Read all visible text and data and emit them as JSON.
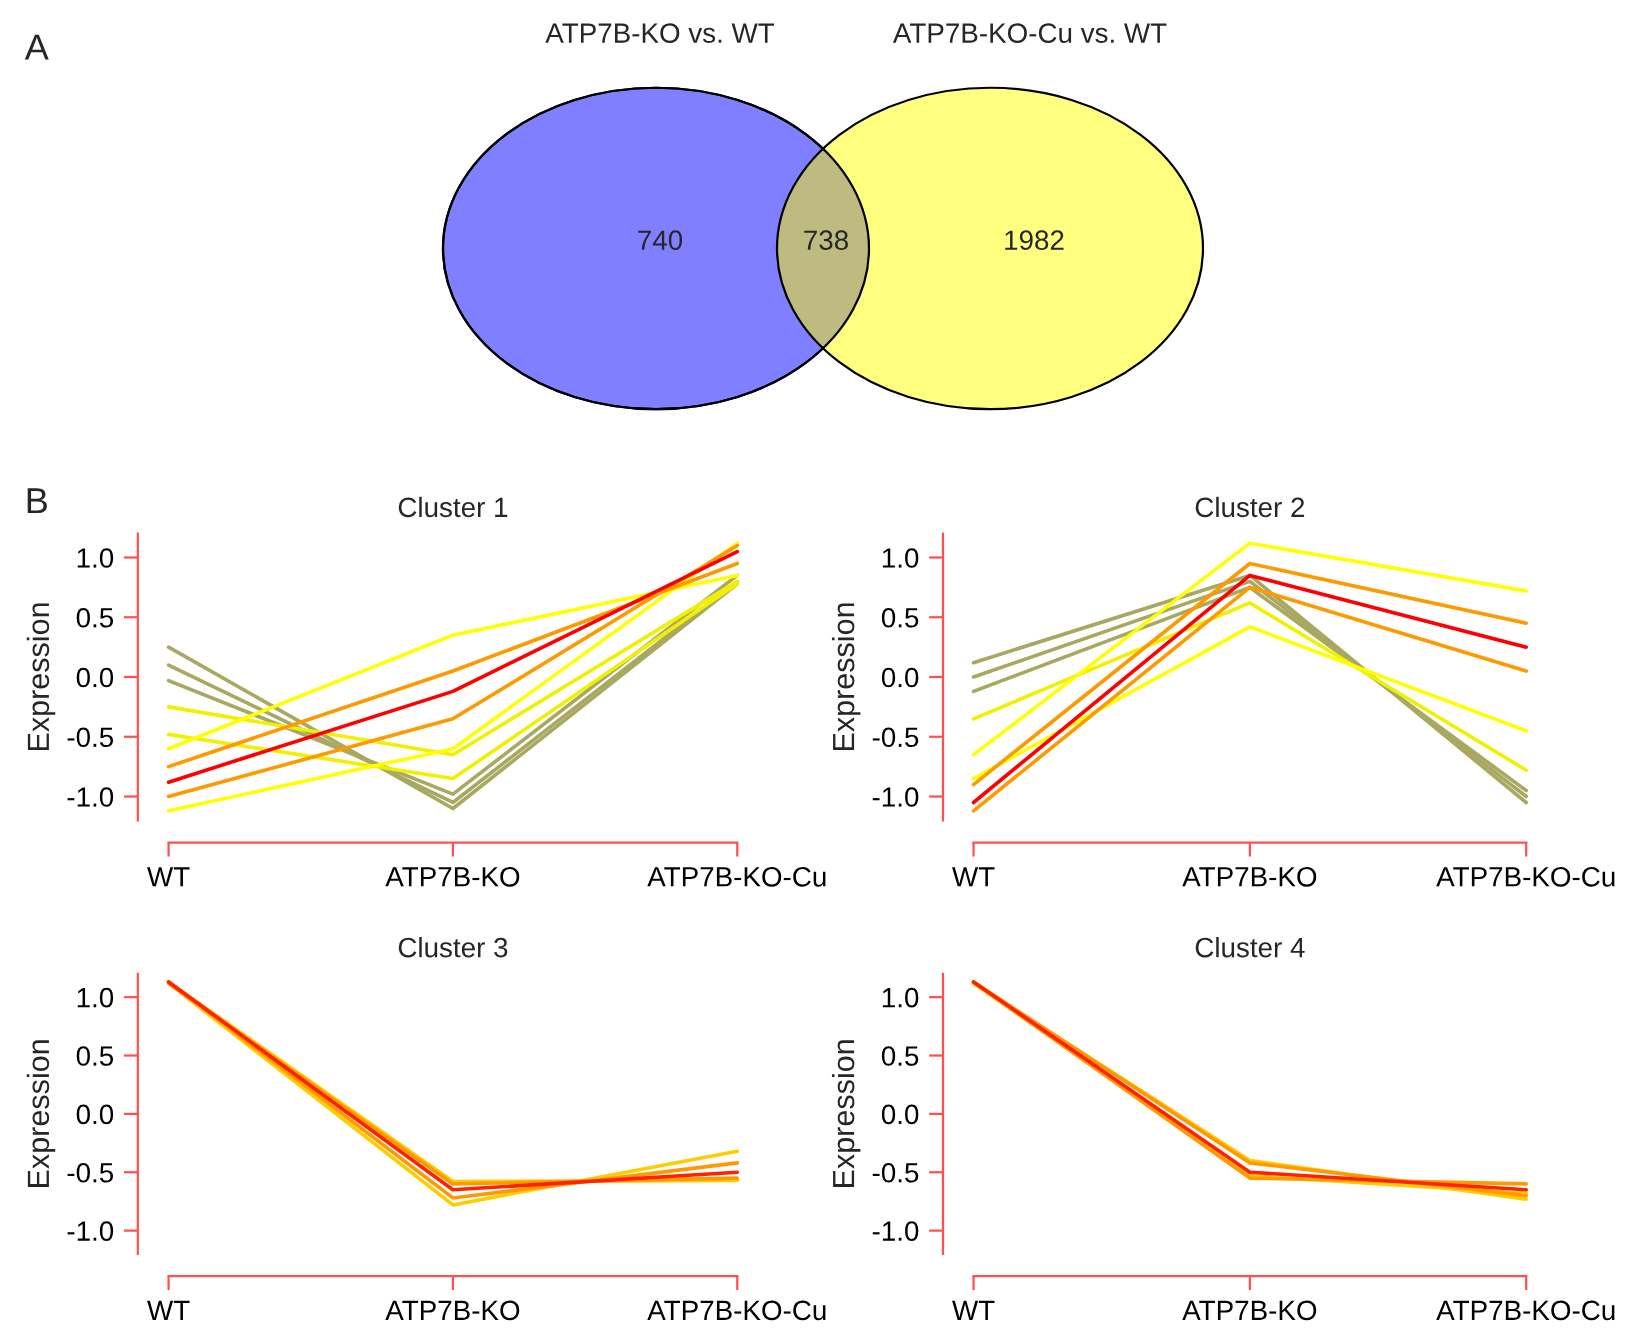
{
  "chart_data": [
    {
      "type": "other",
      "categories": [
        "ATP7B-KO vs. WT",
        null,
        "ATP7B-KO-Cu vs. WT"
      ],
      "values": [
        740,
        738,
        1982
      ],
      "colors": [
        "#7f7fff",
        "#bdbb80",
        "#ffff80"
      ],
      "data_labels": true,
      "annotations": [
        "A"
      ]
    },
    {
      "type": "line",
      "title": "Cluster 1",
      "ylabel": "Expression",
      "annotations": [
        "B"
      ],
      "categories": [
        "WT",
        "ATP7B-KO",
        "ATP7B-KO-Cu"
      ],
      "ylim": [
        -1.2,
        1.2
      ],
      "yticks": [
        {
          "value": -1.0,
          "label": "-1.0"
        },
        {
          "value": -0.5,
          "label": "-0.5"
        },
        {
          "value": 0.0,
          "label": "0.0"
        },
        {
          "value": 0.5,
          "label": "0.5"
        },
        {
          "value": 1.0,
          "label": "1.0"
        }
      ],
      "series": [
        {
          "color": "#a8a860",
          "values": [
            0.25,
            -1.1,
            0.78
          ]
        },
        {
          "color": "#a8a860",
          "values": [
            0.1,
            -1.05,
            0.8
          ]
        },
        {
          "color": "#a8a860",
          "values": [
            -0.03,
            -0.98,
            0.85
          ]
        },
        {
          "color": "#f0f000",
          "values": [
            -0.25,
            -0.65,
            0.8
          ]
        },
        {
          "color": "#f0f000",
          "values": [
            -0.48,
            -0.85,
            0.78
          ]
        },
        {
          "color": "#ffff00",
          "values": [
            -0.6,
            0.35,
            0.85
          ]
        },
        {
          "color": "#ffff00",
          "values": [
            -1.12,
            -0.6,
            1.12
          ]
        },
        {
          "color": "#ff9900",
          "values": [
            -0.75,
            0.05,
            0.95
          ]
        },
        {
          "color": "#ff9900",
          "values": [
            -1.0,
            -0.35,
            1.1
          ]
        },
        {
          "color": "#ff0000",
          "values": [
            -0.88,
            -0.12,
            1.05
          ]
        }
      ]
    },
    {
      "type": "line",
      "title": "Cluster 2",
      "ylabel": "Expression",
      "categories": [
        "WT",
        "ATP7B-KO",
        "ATP7B-KO-Cu"
      ],
      "ylim": [
        -1.2,
        1.2
      ],
      "yticks": [
        {
          "value": -1.0,
          "label": "-1.0"
        },
        {
          "value": -0.5,
          "label": "-0.5"
        },
        {
          "value": 0.0,
          "label": "0.0"
        },
        {
          "value": 0.5,
          "label": "0.5"
        },
        {
          "value": 1.0,
          "label": "1.0"
        }
      ],
      "series": [
        {
          "color": "#a8a860",
          "values": [
            0.12,
            0.85,
            -1.05
          ]
        },
        {
          "color": "#a8a860",
          "values": [
            0.0,
            0.8,
            -1.0
          ]
        },
        {
          "color": "#a8a860",
          "values": [
            -0.12,
            0.75,
            -0.95
          ]
        },
        {
          "color": "#f0f000",
          "values": [
            -0.35,
            0.62,
            -0.78
          ]
        },
        {
          "color": "#ffff00",
          "values": [
            -0.65,
            1.12,
            0.72
          ]
        },
        {
          "color": "#ffff00",
          "values": [
            -0.85,
            0.42,
            -0.45
          ]
        },
        {
          "color": "#ff9900",
          "values": [
            -0.9,
            0.95,
            0.45
          ]
        },
        {
          "color": "#ff9900",
          "values": [
            -1.12,
            0.75,
            0.05
          ]
        },
        {
          "color": "#ff0000",
          "values": [
            -1.05,
            0.85,
            0.25
          ]
        }
      ]
    },
    {
      "type": "line",
      "title": "Cluster 3",
      "ylabel": "Expression",
      "categories": [
        "WT",
        "ATP7B-KO",
        "ATP7B-KO-Cu"
      ],
      "ylim": [
        -1.2,
        1.2
      ],
      "yticks": [
        {
          "value": -1.0,
          "label": "-1.0"
        },
        {
          "value": -0.5,
          "label": "-0.5"
        },
        {
          "value": 0.0,
          "label": "0.0"
        },
        {
          "value": 0.5,
          "label": "0.5"
        },
        {
          "value": 1.0,
          "label": "1.0"
        }
      ],
      "series": [
        {
          "color": "#ffcc00",
          "values": [
            1.12,
            -0.78,
            -0.32
          ]
        },
        {
          "color": "#ffcc00",
          "values": [
            1.13,
            -0.58,
            -0.57
          ]
        },
        {
          "color": "#ff9900",
          "values": [
            1.13,
            -0.72,
            -0.42
          ]
        },
        {
          "color": "#ff9900",
          "values": [
            1.12,
            -0.6,
            -0.55
          ]
        },
        {
          "color": "#ff2200",
          "values": [
            1.13,
            -0.65,
            -0.5
          ]
        }
      ]
    },
    {
      "type": "line",
      "title": "Cluster 4",
      "ylabel": "Expression",
      "categories": [
        "WT",
        "ATP7B-KO",
        "ATP7B-KO-Cu"
      ],
      "ylim": [
        -1.2,
        1.2
      ],
      "yticks": [
        {
          "value": -1.0,
          "label": "-1.0"
        },
        {
          "value": -0.5,
          "label": "-0.5"
        },
        {
          "value": 0.0,
          "label": "0.0"
        },
        {
          "value": 0.5,
          "label": "0.5"
        },
        {
          "value": 1.0,
          "label": "1.0"
        }
      ],
      "series": [
        {
          "color": "#ffcc00",
          "values": [
            1.12,
            -0.4,
            -0.73
          ]
        },
        {
          "color": "#ffcc00",
          "values": [
            1.12,
            -0.53,
            -0.68
          ]
        },
        {
          "color": "#ff9900",
          "values": [
            1.13,
            -0.42,
            -0.7
          ]
        },
        {
          "color": "#ff9900",
          "values": [
            1.13,
            -0.55,
            -0.6
          ]
        },
        {
          "color": "#ff2200",
          "values": [
            1.13,
            -0.5,
            -0.65
          ]
        }
      ]
    }
  ]
}
